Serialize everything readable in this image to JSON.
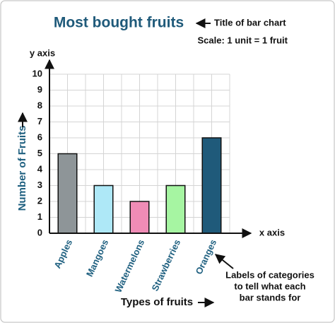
{
  "chart_data": {
    "type": "bar",
    "title": "Most bought fruits",
    "title_note": "Title of bar chart",
    "scale_note": "Scale: 1 unit = 1 fruit",
    "y_axis_name": "y axis",
    "x_axis_name": "x axis",
    "ylabel": "Number of Fruits",
    "xlabel": "Types of fruits",
    "category_note": [
      "Labels of categories",
      "to tell what each",
      "bar stands for"
    ],
    "categories": [
      "Apples",
      "Mangoes",
      "Watermelons",
      "Strawberries",
      "Oranges"
    ],
    "values": [
      5,
      3,
      2,
      3,
      6
    ],
    "colors": [
      "#8e9598",
      "#aee8f7",
      "#f08cb6",
      "#a6f5a2",
      "#1f5a7a"
    ],
    "ylim": [
      0,
      10
    ],
    "yticks": [
      0,
      1,
      2,
      3,
      4,
      5,
      6,
      7,
      8,
      9,
      10
    ],
    "grid": true
  }
}
